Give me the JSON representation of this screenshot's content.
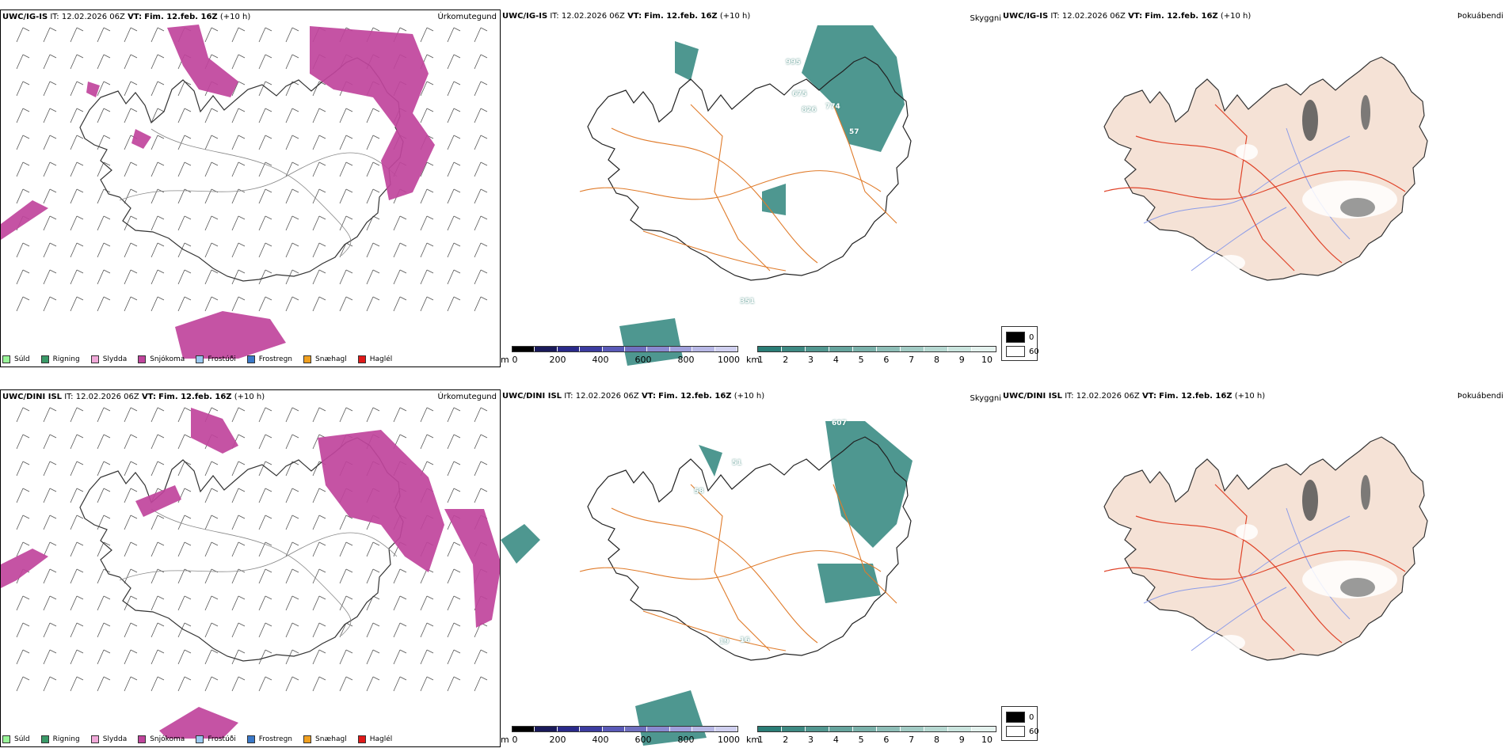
{
  "rows": [
    {
      "model": "UWC/IG-IS",
      "init_label": "IT:",
      "init": "12.02.2026 06Z",
      "valid_label": "VT:",
      "valid": "Fim. 12.feb. 16Z",
      "lead": "(+10 h)",
      "visibility_labels": [
        "995",
        "675",
        "826",
        "774",
        "57",
        "351"
      ]
    },
    {
      "model": "UWC/DINI ISL",
      "init_label": "IT:",
      "init": "12.02.2026 06Z",
      "valid_label": "VT:",
      "valid": "Fim. 12.feb. 16Z",
      "lead": "(+10 h)",
      "visibility_labels": [
        "607",
        "58",
        "51",
        "16",
        "19"
      ]
    }
  ],
  "panel_titles": {
    "precip": "Úrkomutegund",
    "visibility": "Skyggni",
    "cloud": "Þokuábendi"
  },
  "precip_legend": [
    {
      "label": "Súld",
      "color": "#98f598"
    },
    {
      "label": "Rigning",
      "color": "#3a9a68"
    },
    {
      "label": "Slydda",
      "color": "#f0a8d8"
    },
    {
      "label": "Snjókoma",
      "color": "#c0449c"
    },
    {
      "label": "Frostúði",
      "color": "#9ac8f0"
    },
    {
      "label": "Frostregn",
      "color": "#3a78c8"
    },
    {
      "label": "Snæhagl",
      "color": "#f0a020"
    },
    {
      "label": "Haglél",
      "color": "#e01818"
    }
  ],
  "terrain_colorbar": {
    "unit": "m",
    "ticks": [
      "0",
      "200",
      "400",
      "600",
      "800",
      "1000"
    ],
    "colors": [
      "#000000",
      "#1a1a5a",
      "#2a2a8a",
      "#3c3ca0",
      "#5a5ab8",
      "#7070c0",
      "#8a8ad0",
      "#a0a0dc",
      "#b8b8e6",
      "#d0d0f0"
    ]
  },
  "visibility_colorbar": {
    "unit": "km",
    "ticks": [
      "1",
      "2",
      "3",
      "4",
      "5",
      "6",
      "7",
      "8",
      "9",
      "10"
    ],
    "colors": [
      "#2a7d76",
      "#3e8a83",
      "#529790",
      "#66a49d",
      "#7ab1aa",
      "#8ebeb7",
      "#a2cbc4",
      "#b6d8d1",
      "#cae5de",
      "#e4f2ee"
    ]
  },
  "cloud_key": [
    {
      "label": "0",
      "color": "#000000"
    },
    {
      "label": "60",
      "color": "#ffffff"
    }
  ],
  "colors": {
    "snow": "#c0449c",
    "visibility_fill": "#2f857c",
    "roads": "#e07b2a",
    "land": "#f5e2d6",
    "rivers": "#8c9ce8"
  }
}
